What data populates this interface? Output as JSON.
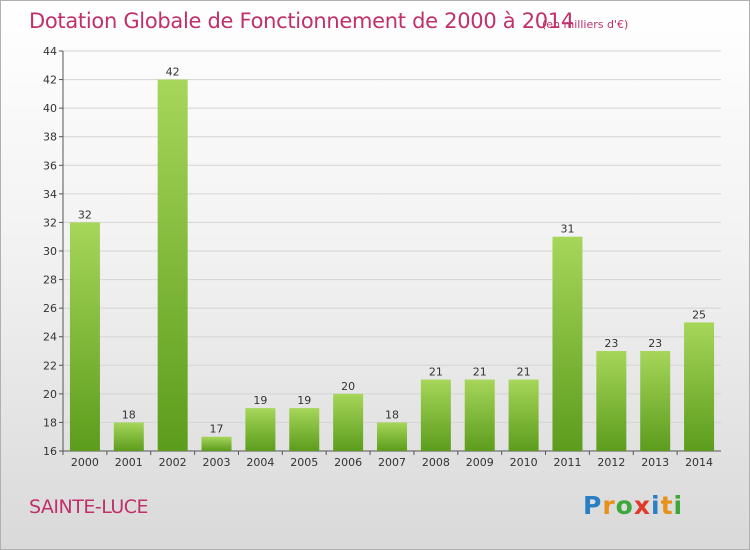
{
  "title": "Dotation Globale de Fonctionnement de 2000 à 2014",
  "subtitle": "(en milliers d'€)",
  "commune": "SAINTE-LUCE",
  "logo": {
    "letters": [
      "P",
      "r",
      "o",
      "x",
      "i",
      "t",
      "i"
    ],
    "colors": [
      "#2a7fc4",
      "#e8911a",
      "#3fa63a",
      "#e03a2a",
      "#2a7fc4",
      "#e8911a",
      "#3fa63a"
    ]
  },
  "colors": {
    "title": "#c0306a",
    "bar_light": "#a6d65a",
    "bar_dark": "#5c9c1c"
  },
  "chart_data": {
    "type": "bar",
    "categories": [
      "2000",
      "2001",
      "2002",
      "2003",
      "2004",
      "2005",
      "2006",
      "2007",
      "2008",
      "2009",
      "2010",
      "2011",
      "2012",
      "2013",
      "2014"
    ],
    "values": [
      32,
      18,
      42,
      17,
      19,
      19,
      20,
      18,
      21,
      21,
      21,
      31,
      23,
      23,
      25
    ],
    "ylim": [
      16,
      44
    ],
    "yticks": [
      16,
      18,
      20,
      22,
      24,
      26,
      28,
      30,
      32,
      34,
      36,
      38,
      40,
      42,
      44
    ],
    "grid": true,
    "xlabel": "",
    "ylabel": ""
  }
}
